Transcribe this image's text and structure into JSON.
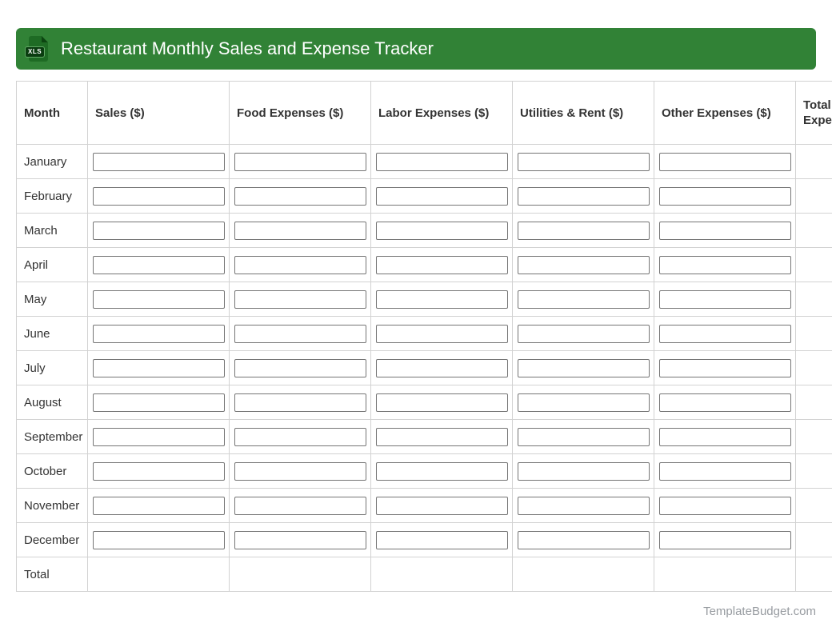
{
  "header": {
    "title": "Restaurant Monthly Sales and Expense Tracker",
    "file_badge": "XLS"
  },
  "table": {
    "columns": [
      {
        "label": "Month",
        "key": "month"
      },
      {
        "label": "Sales ($)",
        "key": "sales"
      },
      {
        "label": "Food Expenses ($)",
        "key": "food-expenses"
      },
      {
        "label": "Labor Expenses ($)",
        "key": "labor-expenses"
      },
      {
        "label": "Utilities & Rent ($)",
        "key": "utilities-rent"
      },
      {
        "label": "Other Expenses ($)",
        "key": "other-expenses"
      },
      {
        "label": "Total Expenses ($)",
        "key": "total-expenses"
      }
    ],
    "input_columns": [
      "sales",
      "food-expenses",
      "labor-expenses",
      "utilities-rent",
      "other-expenses"
    ],
    "months": [
      "January",
      "February",
      "March",
      "April",
      "May",
      "June",
      "July",
      "August",
      "September",
      "October",
      "November",
      "December"
    ],
    "total_row_label": "Total",
    "input_value": "",
    "input_placeholder": ""
  },
  "footer": {
    "credit": "TemplateBudget.com"
  },
  "colors": {
    "banner_green": "#318236",
    "icon_green": "#1e6b24",
    "badge_green": "#0a3d10",
    "table_border": "#d2d2d2",
    "text_dark": "#333333",
    "input_border": "#757575",
    "footer_gray": "#979ba0"
  }
}
